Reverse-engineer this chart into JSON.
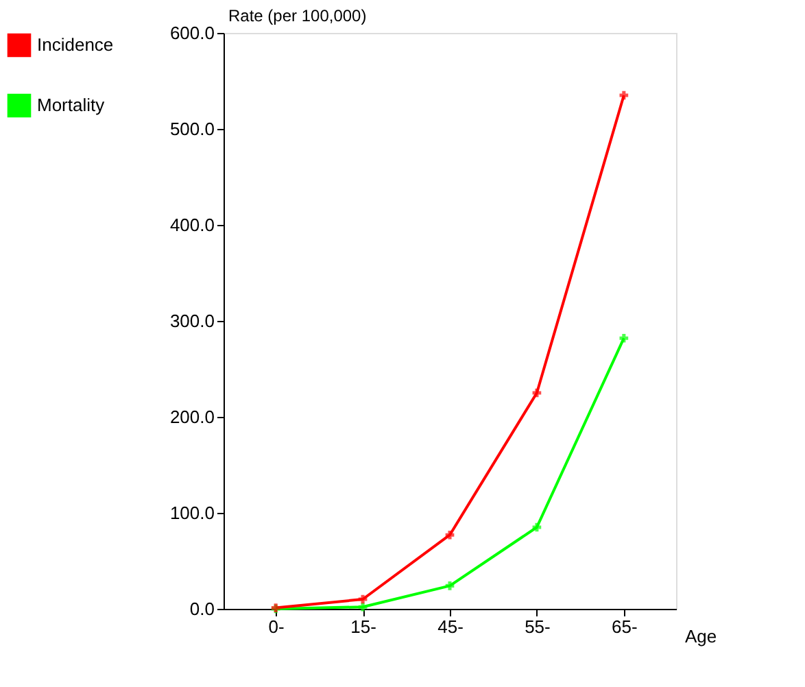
{
  "chart_data": {
    "type": "line",
    "xlabel": "Age",
    "ylabel": "Rate (per 100,000)",
    "categories": [
      "0-",
      "15-",
      "45-",
      "55-",
      "65-"
    ],
    "series": [
      {
        "name": "Incidence",
        "color": "#ff0000",
        "values": [
          1,
          10,
          77,
          225,
          535
        ]
      },
      {
        "name": "Mortality",
        "color": "#00ff00",
        "values": [
          0,
          2,
          24,
          85,
          282
        ]
      }
    ],
    "ylim": [
      0,
      600
    ],
    "yticks": [
      {
        "value": 0,
        "label": "0.0"
      },
      {
        "value": 100,
        "label": "100.0"
      },
      {
        "value": 200,
        "label": "200.0"
      },
      {
        "value": 300,
        "label": "300.0"
      },
      {
        "value": 400,
        "label": "400.0"
      },
      {
        "value": 500,
        "label": "500.0"
      },
      {
        "value": 600,
        "label": "600.0"
      }
    ],
    "grid": false,
    "legend": "left",
    "marker": "cross",
    "line_style": "solid"
  }
}
